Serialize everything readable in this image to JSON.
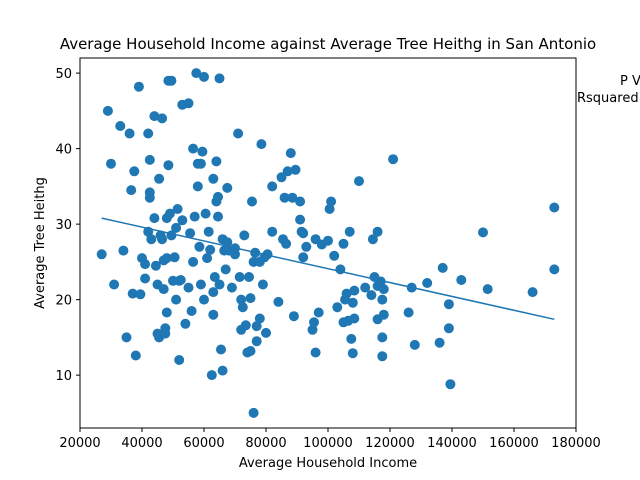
{
  "chart_data": {
    "type": "scatter",
    "title": "Average Household Income against Average Tree Heithg in San Antonio",
    "xlabel": "Average Household Income",
    "ylabel": "Average Tree Heithg",
    "xlim": [
      20000,
      180000
    ],
    "ylim": [
      3,
      52
    ],
    "xticks": [
      20000,
      40000,
      60000,
      80000,
      100000,
      120000,
      140000,
      160000,
      180000
    ],
    "yticks": [
      10,
      20,
      30,
      40,
      50
    ],
    "grid": false,
    "colors": {
      "points": "#1f77b4",
      "regression": "#1f77b4"
    },
    "annotations": [
      "P V",
      "Rsquared"
    ],
    "regression_line": {
      "x": [
        27000,
        173000
      ],
      "y": [
        30.8,
        17.4
      ]
    },
    "points": [
      [
        27000,
        26
      ],
      [
        29000,
        45
      ],
      [
        30000,
        38
      ],
      [
        31000,
        22
      ],
      [
        33000,
        43
      ],
      [
        34000,
        26.5
      ],
      [
        35000,
        15
      ],
      [
        36000,
        42
      ],
      [
        36500,
        34.5
      ],
      [
        37000,
        20.8
      ],
      [
        37500,
        37
      ],
      [
        38000,
        12.6
      ],
      [
        39000,
        48.2
      ],
      [
        39500,
        20.7
      ],
      [
        40000,
        25.5
      ],
      [
        41000,
        22.8
      ],
      [
        41000,
        24.7
      ],
      [
        42000,
        29
      ],
      [
        42000,
        42
      ],
      [
        42500,
        38.5
      ],
      [
        42500,
        34.2
      ],
      [
        42500,
        33.5
      ],
      [
        43000,
        28
      ],
      [
        44000,
        44.3
      ],
      [
        44000,
        30.8
      ],
      [
        44500,
        24.5
      ],
      [
        45000,
        15.5
      ],
      [
        45000,
        22
      ],
      [
        45500,
        36
      ],
      [
        45500,
        15
      ],
      [
        46000,
        28.5
      ],
      [
        46500,
        44
      ],
      [
        46500,
        28
      ],
      [
        47000,
        21.4
      ],
      [
        47000,
        25.2
      ],
      [
        47500,
        15.5
      ],
      [
        47500,
        16.2
      ],
      [
        48000,
        30.8
      ],
      [
        48000,
        18.3
      ],
      [
        48000,
        25.5
      ],
      [
        48500,
        37.8
      ],
      [
        48500,
        49
      ],
      [
        49000,
        31.4
      ],
      [
        49500,
        49
      ],
      [
        49500,
        28.5
      ],
      [
        50000,
        22.5
      ],
      [
        50500,
        25.6
      ],
      [
        51000,
        29.5
      ],
      [
        51000,
        20
      ],
      [
        51500,
        32
      ],
      [
        52000,
        22.5
      ],
      [
        52000,
        12
      ],
      [
        52500,
        22.6
      ],
      [
        53000,
        30.5
      ],
      [
        53000,
        45.8
      ],
      [
        54000,
        16.8
      ],
      [
        55000,
        21.6
      ],
      [
        55000,
        46
      ],
      [
        55500,
        28.8
      ],
      [
        56000,
        18.5
      ],
      [
        56500,
        40
      ],
      [
        56500,
        25
      ],
      [
        57000,
        31
      ],
      [
        57500,
        50
      ],
      [
        58000,
        38
      ],
      [
        58000,
        35
      ],
      [
        58500,
        27
      ],
      [
        59000,
        22
      ],
      [
        59000,
        38
      ],
      [
        59500,
        39.6
      ],
      [
        60000,
        49.5
      ],
      [
        60000,
        20
      ],
      [
        60500,
        31.4
      ],
      [
        61000,
        25.5
      ],
      [
        61500,
        29
      ],
      [
        62000,
        26.6
      ],
      [
        62500,
        10
      ],
      [
        63000,
        36
      ],
      [
        63000,
        21
      ],
      [
        63000,
        18
      ],
      [
        63500,
        23
      ],
      [
        64000,
        33
      ],
      [
        64000,
        38.3
      ],
      [
        64500,
        33.6
      ],
      [
        64500,
        31
      ],
      [
        65000,
        22
      ],
      [
        65000,
        49.3
      ],
      [
        65500,
        13.4
      ],
      [
        66000,
        10.6
      ],
      [
        66000,
        28
      ],
      [
        66500,
        26.5
      ],
      [
        67000,
        24
      ],
      [
        67500,
        27.6
      ],
      [
        67500,
        34.8
      ],
      [
        68000,
        26.5
      ],
      [
        69000,
        21.6
      ],
      [
        70000,
        26.8
      ],
      [
        70000,
        26
      ],
      [
        71000,
        42
      ],
      [
        71500,
        23
      ],
      [
        72000,
        20
      ],
      [
        72000,
        16
      ],
      [
        72500,
        19
      ],
      [
        73000,
        28.5
      ],
      [
        73500,
        16.6
      ],
      [
        74000,
        13
      ],
      [
        74500,
        23
      ],
      [
        75000,
        20.2
      ],
      [
        75000,
        13.2
      ],
      [
        75500,
        33
      ],
      [
        76000,
        5
      ],
      [
        76000,
        25
      ],
      [
        76500,
        26.2
      ],
      [
        77000,
        16.5
      ],
      [
        77000,
        14.5
      ],
      [
        78000,
        17.5
      ],
      [
        78000,
        25
      ],
      [
        78500,
        40.6
      ],
      [
        79000,
        22
      ],
      [
        79500,
        25.6
      ],
      [
        80000,
        15.6
      ],
      [
        80500,
        26
      ],
      [
        82000,
        35
      ],
      [
        82000,
        29
      ],
      [
        84000,
        19.7
      ],
      [
        85000,
        36.2
      ],
      [
        85500,
        28
      ],
      [
        86000,
        33.5
      ],
      [
        86500,
        27.4
      ],
      [
        87000,
        37
      ],
      [
        88000,
        39.4
      ],
      [
        88500,
        33.5
      ],
      [
        89000,
        17.8
      ],
      [
        89500,
        37.2
      ],
      [
        91000,
        33
      ],
      [
        91000,
        30.6
      ],
      [
        91500,
        29
      ],
      [
        92000,
        25.6
      ],
      [
        92000,
        28.8
      ],
      [
        93000,
        27
      ],
      [
        95000,
        16
      ],
      [
        95500,
        17
      ],
      [
        96000,
        28
      ],
      [
        96000,
        13
      ],
      [
        97000,
        18.3
      ],
      [
        98000,
        27.3
      ],
      [
        100000,
        27.8
      ],
      [
        100500,
        32
      ],
      [
        101000,
        33
      ],
      [
        102000,
        25.8
      ],
      [
        103000,
        19
      ],
      [
        104000,
        24
      ],
      [
        105000,
        17
      ],
      [
        105000,
        27.4
      ],
      [
        105500,
        20
      ],
      [
        106000,
        20.8
      ],
      [
        106500,
        17.2
      ],
      [
        107000,
        29
      ],
      [
        107500,
        14.8
      ],
      [
        108000,
        12.9
      ],
      [
        108000,
        19.6
      ],
      [
        108500,
        17.5
      ],
      [
        108500,
        21.2
      ],
      [
        110000,
        35.7
      ],
      [
        112000,
        21.6
      ],
      [
        114000,
        20.6
      ],
      [
        114500,
        28
      ],
      [
        115000,
        23
      ],
      [
        116000,
        29
      ],
      [
        116000,
        21.8
      ],
      [
        116000,
        17.4
      ],
      [
        117000,
        22.4
      ],
      [
        117500,
        20
      ],
      [
        117500,
        12.5
      ],
      [
        117500,
        15
      ],
      [
        118000,
        18
      ],
      [
        118000,
        21.4
      ],
      [
        121000,
        38.6
      ],
      [
        126000,
        18.3
      ],
      [
        127000,
        21.6
      ],
      [
        128000,
        14
      ],
      [
        132000,
        22.2
      ],
      [
        136000,
        14.3
      ],
      [
        137000,
        24.2
      ],
      [
        139000,
        19.4
      ],
      [
        139000,
        16.2
      ],
      [
        139500,
        8.8
      ],
      [
        143000,
        22.6
      ],
      [
        150000,
        28.9
      ],
      [
        151500,
        21.4
      ],
      [
        166000,
        21
      ],
      [
        173000,
        32.2
      ],
      [
        173000,
        24
      ]
    ]
  }
}
